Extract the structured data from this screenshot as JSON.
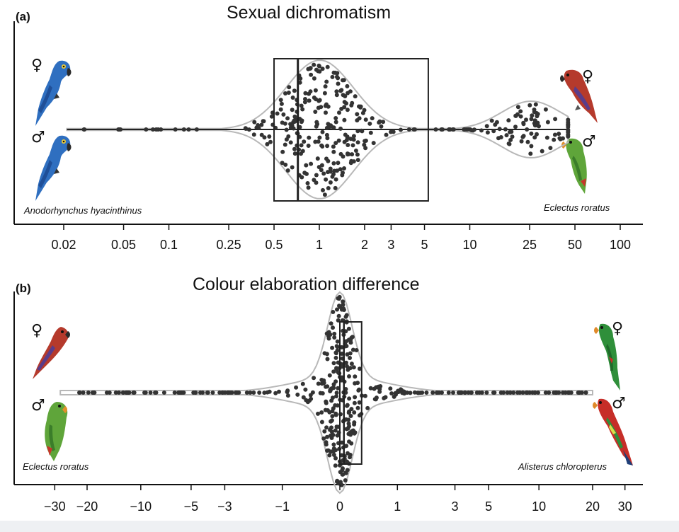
{
  "chart_data": [
    {
      "type": "violin",
      "panel_label": "(a)",
      "title": "Sexual dichromatism",
      "scale": "log",
      "xlim": [
        0.02,
        100
      ],
      "ticks": [
        "0.02",
        "0.05",
        "0.1",
        "0.25",
        "0.5",
        "1",
        "2",
        "3",
        "5",
        "10",
        "25",
        "50",
        "100"
      ],
      "tick_values": [
        0.02,
        0.05,
        0.1,
        0.25,
        0.5,
        1,
        2,
        3,
        5,
        10,
        25,
        50,
        100
      ],
      "box": {
        "q1": 0.5,
        "median": 0.72,
        "q3": 5.3,
        "whisker_low": 0.021,
        "whisker_high": 45
      },
      "left_species": "Anodorhynchus hyacinthinus",
      "right_species": "Eclectus roratus",
      "female_symbol": "♀",
      "male_symbol": "♂",
      "n_points": 370
    },
    {
      "type": "violin",
      "panel_label": "(b)",
      "title": "Colour elaboration difference",
      "scale": "symlog",
      "xlim": [
        -30,
        30
      ],
      "ticks": [
        "−30",
        "−20",
        "−10",
        "−5",
        "−3",
        "−1",
        "0",
        "1",
        "3",
        "5",
        "10",
        "20",
        "30"
      ],
      "tick_values": [
        -30,
        -20,
        -10,
        -5,
        -3,
        -1,
        0,
        1,
        3,
        5,
        10,
        20,
        30
      ],
      "box": {
        "q1": 0.0,
        "median": 0.05,
        "q3": 0.3,
        "whisker_low": -28,
        "whisker_high": 20
      },
      "left_species": "Eclectus roratus",
      "right_species": "Alisterus chloropterus",
      "female_symbol": "♀",
      "male_symbol": "♂",
      "n_points": 420
    }
  ],
  "colors": {
    "point": "#333333",
    "violin": "#b8b8b8",
    "axis": "#111111",
    "hyacinth_blue": "#2f6fc0",
    "eclectus_red": "#b53a2c",
    "eclectus_green": "#5fa53a",
    "alisterus_red": "#c62e28",
    "alisterus_green": "#2f8f3a"
  },
  "icons": [
    "hyacinth-macaw-female-icon",
    "hyacinth-macaw-male-icon",
    "eclectus-female-icon",
    "eclectus-male-icon",
    "alisterus-female-icon",
    "alisterus-male-icon"
  ]
}
